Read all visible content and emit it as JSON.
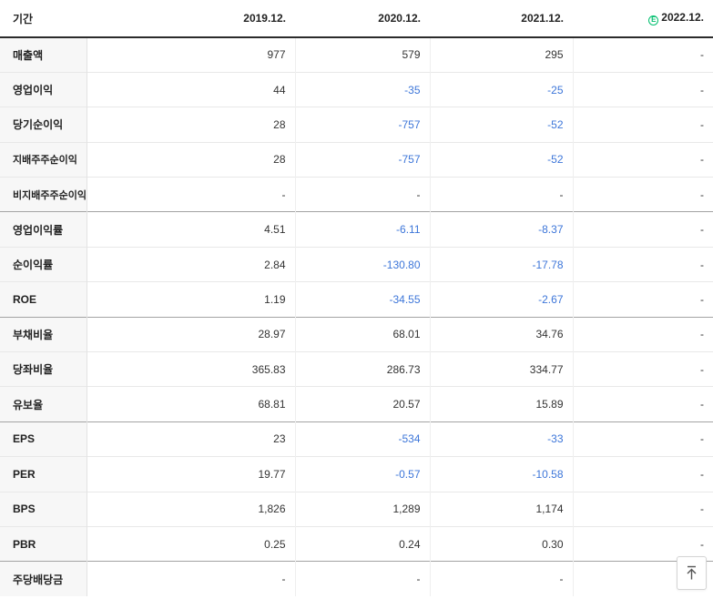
{
  "header": {
    "cols": [
      "기간",
      "2019.12.",
      "2020.12.",
      "2021.12.",
      "2022.12."
    ],
    "estimate_letter": "E"
  },
  "table": {
    "rows": [
      {
        "label": "매출액",
        "values": [
          "977",
          "579",
          "295",
          "-"
        ]
      },
      {
        "label": "영업이익",
        "values": [
          "44",
          "-35",
          "-25",
          "-"
        ]
      },
      {
        "label": "당기순이익",
        "values": [
          "28",
          "-757",
          "-52",
          "-"
        ]
      },
      {
        "label": "지배주주순이익",
        "values": [
          "28",
          "-757",
          "-52",
          "-"
        ],
        "small_label": true
      },
      {
        "label": "비지배주주순이익",
        "values": [
          "-",
          "-",
          "-",
          "-"
        ],
        "small_label": true
      },
      {
        "label": "영업이익률",
        "values": [
          "4.51",
          "-6.11",
          "-8.37",
          "-"
        ],
        "section_start": true
      },
      {
        "label": "순이익률",
        "values": [
          "2.84",
          "-130.80",
          "-17.78",
          "-"
        ]
      },
      {
        "label": "ROE",
        "values": [
          "1.19",
          "-34.55",
          "-2.67",
          "-"
        ]
      },
      {
        "label": "부채비율",
        "values": [
          "28.97",
          "68.01",
          "34.76",
          "-"
        ],
        "section_start": true
      },
      {
        "label": "당좌비율",
        "values": [
          "365.83",
          "286.73",
          "334.77",
          "-"
        ]
      },
      {
        "label": "유보율",
        "values": [
          "68.81",
          "20.57",
          "15.89",
          "-"
        ]
      },
      {
        "label": "EPS",
        "values": [
          "23",
          "-534",
          "-33",
          "-"
        ],
        "section_start": true
      },
      {
        "label": "PER",
        "values": [
          "19.77",
          "-0.57",
          "-10.58",
          "-"
        ]
      },
      {
        "label": "BPS",
        "values": [
          "1,826",
          "1,289",
          "1,174",
          "-"
        ]
      },
      {
        "label": "PBR",
        "values": [
          "0.25",
          "0.24",
          "0.30",
          "-"
        ]
      },
      {
        "label": "주당배당금",
        "values": [
          "-",
          "-",
          "-",
          "-"
        ],
        "section_start": true
      }
    ]
  },
  "colors": {
    "negative_value": "#3d76d9",
    "estimate_green": "#00bf6e"
  },
  "icons": {
    "estimate": "estimate-circle-e-icon",
    "scroll_top": "scroll-to-top-arrow-icon"
  }
}
